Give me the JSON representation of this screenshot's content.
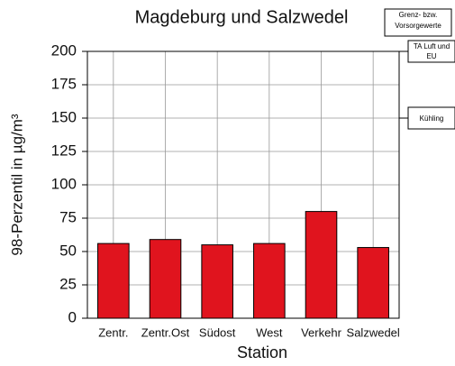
{
  "chart_data": {
    "type": "bar",
    "title": "Magdeburg und Salzwedel",
    "y_label": "98-Perzentil in µg/m³",
    "x_label": "Station",
    "categories": [
      "Zentr.",
      "Zentr.Ost",
      "Südost",
      "West",
      "Verkehr",
      "Salzwedel"
    ],
    "values": [
      56,
      59,
      55,
      56,
      80,
      53
    ],
    "color": "#e0141e",
    "ylim": [
      0,
      200
    ],
    "yticks": [
      0,
      25,
      50,
      75,
      100,
      125,
      150,
      175,
      200
    ],
    "grid": true,
    "legend_title": "Grenz- bzw. Vorsorgewerte",
    "reference_lines": [
      {
        "label": "TA Luft und EU",
        "value": 200
      },
      {
        "label": "Kühling",
        "value": 150
      }
    ]
  }
}
